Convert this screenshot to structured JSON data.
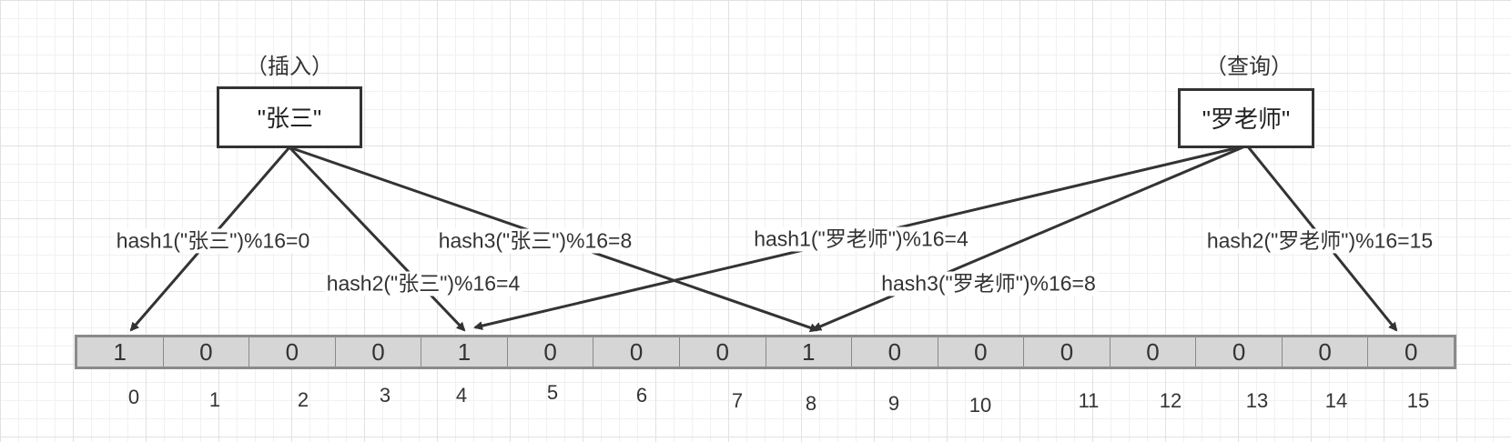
{
  "insert": {
    "caption": "（插入）",
    "key": "\"张三\""
  },
  "query": {
    "caption": "（查询）",
    "key": "\"罗老师\""
  },
  "labels": {
    "insert_hash1": "hash1(\"张三\")%16=0",
    "insert_hash2": "hash2(\"张三\")%16=4",
    "insert_hash3": "hash3(\"张三\")%16=8",
    "query_hash1": "hash1(\"罗老师\")%16=4",
    "query_hash2": "hash2(\"罗老师\")%16=15",
    "query_hash3": "hash3(\"罗老师\")%16=8"
  },
  "bit_array": {
    "values": [
      "1",
      "0",
      "0",
      "0",
      "1",
      "0",
      "0",
      "0",
      "1",
      "0",
      "0",
      "0",
      "0",
      "0",
      "0",
      "0"
    ],
    "indices": [
      "0",
      "1",
      "2",
      "3",
      "4",
      "5",
      "6",
      "7",
      "8",
      "9",
      "10",
      "11",
      "12",
      "13",
      "14",
      "15"
    ]
  }
}
